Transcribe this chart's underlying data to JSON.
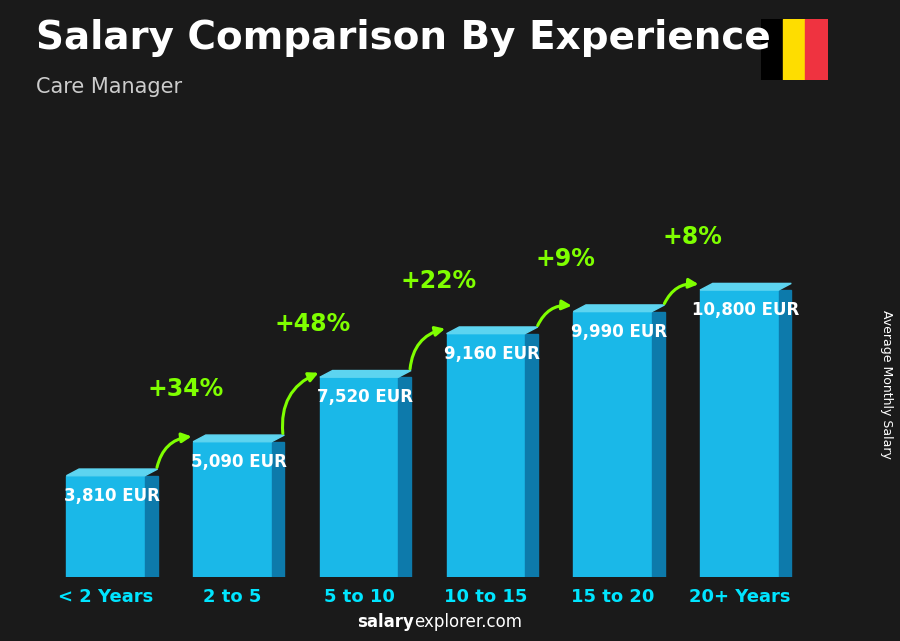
{
  "categories": [
    "< 2 Years",
    "2 to 5",
    "5 to 10",
    "10 to 15",
    "15 to 20",
    "20+ Years"
  ],
  "values": [
    3810,
    5090,
    7520,
    9160,
    9990,
    10800
  ],
  "pct_changes": [
    null,
    "+34%",
    "+48%",
    "+22%",
    "+9%",
    "+8%"
  ],
  "value_labels": [
    "3,810 EUR",
    "5,090 EUR",
    "7,520 EUR",
    "9,160 EUR",
    "9,990 EUR",
    "10,800 EUR"
  ],
  "bar_color_face": "#1ab8e8",
  "bar_color_dark": "#0d7aab",
  "bar_color_top": "#5dd4f0",
  "title": "Salary Comparison By Experience",
  "subtitle": "Care Manager",
  "ylabel": "Average Monthly Salary",
  "watermark": "salaryexplorer.com",
  "title_fontsize": 28,
  "subtitle_fontsize": 15,
  "label_fontsize": 12,
  "pct_fontsize": 17,
  "tick_fontsize": 13,
  "text_color": "#ffffff",
  "subtitle_color": "#cccccc",
  "pct_color": "#7fff00",
  "tick_color": "#00e5ff",
  "flag_colors": [
    "#000000",
    "#FEDD00",
    "#EF3340"
  ],
  "bg_dark": "#1a1a1a",
  "ylim": [
    0,
    14000
  ],
  "watermark_bold": "salary",
  "watermark_regular": "explorer.com"
}
